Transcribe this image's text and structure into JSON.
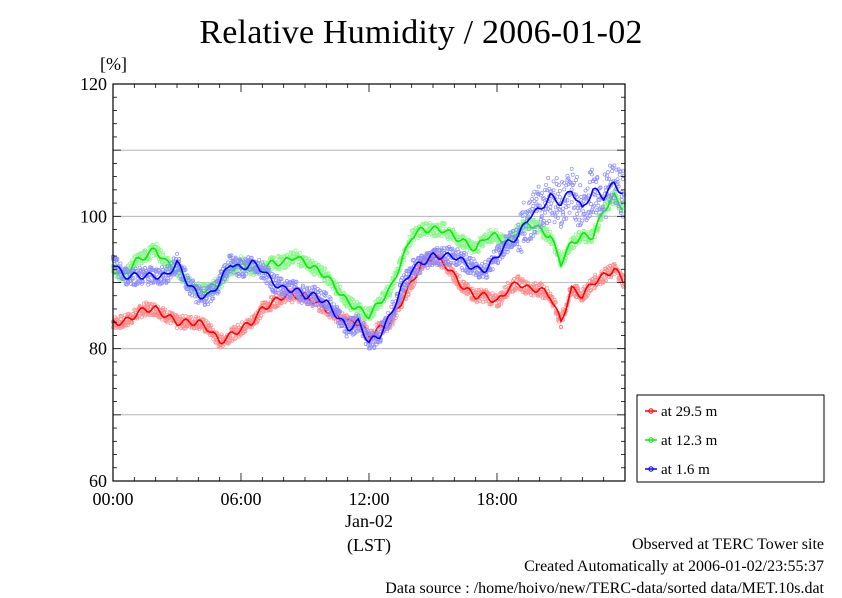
{
  "title": "Relative Humidity / 2006-01-02",
  "chart_data": {
    "type": "line",
    "title": "Relative Humidity / 2006-01-02",
    "ylabel": "[%]",
    "xlabel": "(LST)",
    "x_date_label": "Jan-02",
    "xlim": [
      0,
      24
    ],
    "ylim": [
      60,
      120
    ],
    "x_ticks": [
      {
        "value": 0,
        "label": "00:00"
      },
      {
        "value": 6,
        "label": "06:00"
      },
      {
        "value": 12,
        "label": "12:00"
      },
      {
        "value": 18,
        "label": "18:00"
      }
    ],
    "y_ticks": [
      {
        "value": 60,
        "label": "60"
      },
      {
        "value": 80,
        "label": "80"
      },
      {
        "value": 100,
        "label": "100"
      },
      {
        "value": 120,
        "label": "120"
      }
    ],
    "grid_y": [
      70,
      80,
      90,
      100,
      110
    ],
    "grid": true,
    "legend_position": "right-bottom, outside plot",
    "x_unit": "hour of day",
    "series": [
      {
        "name": "at 29.5 m",
        "color": "#ff0000",
        "x": [
          0,
          0.5,
          1,
          1.5,
          2,
          2.5,
          3,
          3.5,
          4,
          4.5,
          5,
          5.5,
          6,
          6.5,
          7,
          7.5,
          8,
          8.5,
          9,
          9.5,
          10,
          10.5,
          11,
          11.5,
          12,
          12.5,
          13,
          13.5,
          14,
          14.5,
          15,
          15.5,
          16,
          16.5,
          17,
          17.5,
          18,
          18.5,
          19,
          19.5,
          20,
          20.5,
          21,
          21.5,
          22,
          22.5,
          23,
          23.5,
          24
        ],
        "values": [
          84,
          84,
          85,
          86,
          86,
          85,
          84,
          84,
          84,
          83,
          81,
          82,
          83,
          84,
          86,
          87,
          88,
          88,
          88,
          87,
          86,
          85,
          84,
          84,
          82,
          83,
          84,
          87,
          90,
          93,
          94,
          93,
          91,
          89,
          88,
          88,
          87,
          89,
          90,
          89,
          89,
          88,
          84,
          89,
          88,
          90,
          91,
          92,
          90
        ]
      },
      {
        "name": "at 12.3 m",
        "color": "#00ee00",
        "x": [
          0,
          0.5,
          1,
          1.5,
          2,
          2.5,
          3,
          3.5,
          4,
          4.5,
          5,
          5.5,
          6,
          6.5,
          7,
          7.5,
          8,
          8.5,
          9,
          9.5,
          10,
          10.5,
          11,
          11.5,
          12,
          12.5,
          13,
          13.5,
          14,
          14.5,
          15,
          15.5,
          16,
          16.5,
          17,
          17.5,
          18,
          18.5,
          19,
          19.5,
          20,
          20.5,
          21,
          21.5,
          22,
          22.5,
          23,
          23.5,
          24
        ],
        "values": [
          92,
          91,
          93,
          94,
          95,
          93,
          92,
          90,
          89,
          89,
          90,
          92,
          93,
          92,
          92,
          93,
          93,
          94,
          93,
          92,
          91,
          89,
          87,
          86,
          85,
          87,
          89,
          93,
          97,
          98,
          98,
          98,
          97,
          96,
          95,
          97,
          97,
          96,
          98,
          99,
          98,
          97,
          93,
          96,
          97,
          97,
          101,
          103,
          101
        ]
      },
      {
        "name": "at 1.6 m",
        "color": "#0000ff",
        "x": [
          0,
          0.5,
          1,
          1.5,
          2,
          2.5,
          3,
          3.5,
          4,
          4.5,
          5,
          5.5,
          6,
          6.5,
          7,
          7.5,
          8,
          8.5,
          9,
          9.5,
          10,
          10.5,
          11,
          11.5,
          12,
          12.5,
          13,
          13.5,
          14,
          14.5,
          15,
          15.5,
          16,
          16.5,
          17,
          17.5,
          18,
          18.5,
          19,
          19.5,
          20,
          20.5,
          21,
          21.5,
          22,
          22.5,
          23,
          23.5,
          24
        ],
        "values": [
          93,
          91,
          91,
          91,
          91,
          91,
          93,
          90,
          88,
          88,
          90,
          93,
          92,
          93,
          92,
          90,
          89,
          89,
          88,
          88,
          87,
          85,
          83,
          84,
          81,
          82,
          85,
          89,
          92,
          93,
          94,
          94,
          94,
          93,
          92,
          92,
          94,
          96,
          97,
          100,
          101,
          103,
          102,
          104,
          101,
          104,
          103,
          105,
          103
        ]
      }
    ]
  },
  "footer": {
    "line1": "Observed at TERC Tower site",
    "line2": "Created Automatically at 2006-01-02/23:55:37",
    "line3": "Data source : /home/hoivo/new/TERC-data/sorted  data/MET.10s.dat"
  }
}
